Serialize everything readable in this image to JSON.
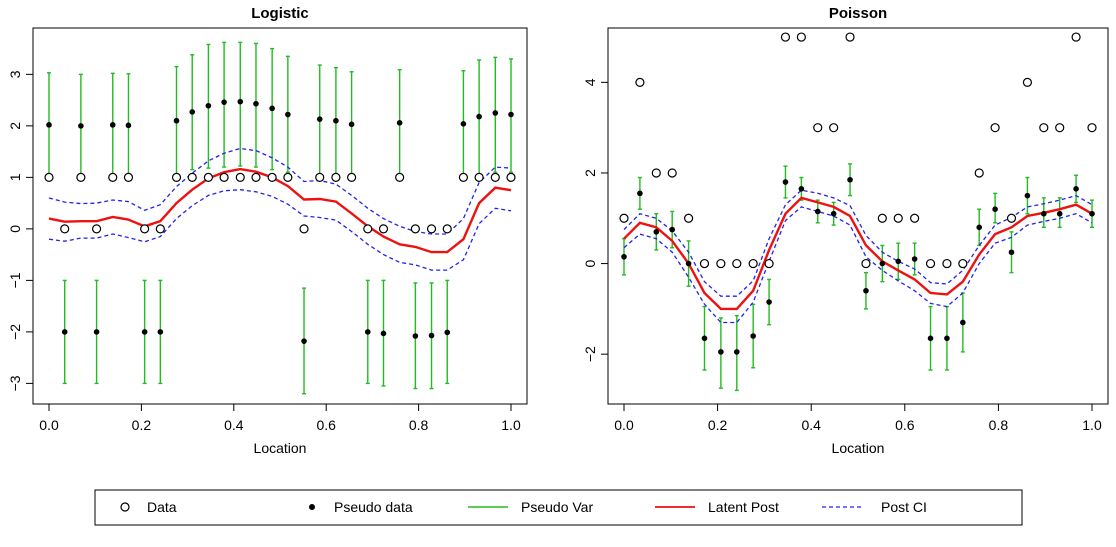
{
  "legend": {
    "items": [
      {
        "label": "Data",
        "kind": "open-circle"
      },
      {
        "label": "Pseudo data",
        "kind": "filled-dot"
      },
      {
        "label": "Pseudo Var",
        "kind": "green-line"
      },
      {
        "label": "Latent Post",
        "kind": "red-line"
      },
      {
        "label": "Post CI",
        "kind": "blue-dashed"
      }
    ]
  },
  "colors": {
    "data": "#000000",
    "pseudo_var": "#22bb22",
    "latent_post": "#ee1111",
    "post_ci": "#2222ee"
  },
  "chart_data": [
    {
      "type": "scatter",
      "title": "Logistic",
      "xlabel": "Location",
      "ylabel": "",
      "xlim": [
        0,
        1
      ],
      "ylim": [
        -3.4,
        3.9
      ],
      "xticks": [
        "0.0",
        "0.2",
        "0.4",
        "0.6",
        "0.8",
        "1.0"
      ],
      "yticks": [
        "-3",
        "-2",
        "-1",
        "0",
        "1",
        "2",
        "3"
      ],
      "x": [
        0.0,
        0.034,
        0.069,
        0.103,
        0.138,
        0.172,
        0.207,
        0.241,
        0.276,
        0.31,
        0.345,
        0.379,
        0.414,
        0.448,
        0.483,
        0.517,
        0.552,
        0.586,
        0.621,
        0.655,
        0.69,
        0.724,
        0.759,
        0.793,
        0.828,
        0.862,
        0.897,
        0.931,
        0.966,
        1.0
      ],
      "data": [
        1,
        0,
        1,
        0,
        1,
        1,
        0,
        0,
        1,
        1,
        1,
        1,
        1,
        1,
        1,
        1,
        0,
        1,
        1,
        1,
        0,
        0,
        1,
        0,
        0,
        0,
        1,
        1,
        1,
        1
      ],
      "pseudo_data": [
        2.02,
        -2.0,
        2.0,
        -2.0,
        2.02,
        2.01,
        -2.0,
        -2.0,
        2.1,
        2.27,
        2.39,
        2.46,
        2.47,
        2.43,
        2.34,
        2.22,
        -2.18,
        2.13,
        2.1,
        2.03,
        -2.0,
        -2.03,
        2.06,
        -2.08,
        -2.07,
        -2.01,
        2.04,
        2.18,
        2.25,
        2.22
      ],
      "pseudo_var_lower": [
        1.0,
        -3.0,
        1.0,
        -3.0,
        1.0,
        1.0,
        -3.0,
        -3.0,
        1.05,
        1.15,
        1.18,
        1.2,
        1.22,
        1.2,
        1.15,
        1.1,
        -3.2,
        1.05,
        1.05,
        1.0,
        -3.0,
        -3.05,
        1.02,
        -3.1,
        -3.1,
        -3.0,
        1.0,
        1.05,
        1.1,
        1.1
      ],
      "pseudo_var_upper": [
        3.03,
        -1.0,
        3.0,
        -1.0,
        3.02,
        3.01,
        -1.0,
        -1.0,
        3.15,
        3.38,
        3.58,
        3.62,
        3.62,
        3.6,
        3.5,
        3.35,
        -1.15,
        3.18,
        3.13,
        3.05,
        -1.0,
        -1.0,
        3.09,
        -1.05,
        -1.05,
        -1.0,
        3.07,
        3.28,
        3.33,
        3.3
      ],
      "latent_post": [
        0.2,
        0.14,
        0.15,
        0.15,
        0.23,
        0.18,
        0.05,
        0.15,
        0.5,
        0.76,
        0.98,
        1.1,
        1.16,
        1.11,
        1.0,
        0.83,
        0.57,
        0.58,
        0.53,
        0.3,
        0.05,
        -0.15,
        -0.3,
        -0.35,
        -0.45,
        -0.45,
        -0.2,
        0.5,
        0.8,
        0.75
      ],
      "post_ci_lower": [
        -0.2,
        -0.24,
        -0.18,
        -0.18,
        -0.1,
        -0.17,
        -0.25,
        -0.15,
        0.2,
        0.45,
        0.65,
        0.74,
        0.76,
        0.72,
        0.63,
        0.48,
        0.25,
        0.22,
        0.17,
        -0.05,
        -0.3,
        -0.5,
        -0.65,
        -0.7,
        -0.8,
        -0.8,
        -0.6,
        0.1,
        0.4,
        0.35
      ],
      "post_ci_upper": [
        0.6,
        0.52,
        0.49,
        0.5,
        0.56,
        0.53,
        0.36,
        0.47,
        0.82,
        1.08,
        1.32,
        1.47,
        1.56,
        1.52,
        1.38,
        1.2,
        0.92,
        0.94,
        0.87,
        0.65,
        0.4,
        0.2,
        0.05,
        -0.05,
        -0.1,
        -0.1,
        0.2,
        0.9,
        1.2,
        1.18
      ]
    },
    {
      "type": "scatter",
      "title": "Poisson",
      "xlabel": "Location",
      "ylabel": "",
      "xlim": [
        0,
        1
      ],
      "ylim": [
        -3.1,
        5.2
      ],
      "xticks": [
        "0.0",
        "0.2",
        "0.4",
        "0.6",
        "0.8",
        "1.0"
      ],
      "yticks": [
        "-2",
        "0",
        "2",
        "4"
      ],
      "x": [
        0.0,
        0.034,
        0.069,
        0.103,
        0.138,
        0.172,
        0.207,
        0.241,
        0.276,
        0.31,
        0.345,
        0.379,
        0.414,
        0.448,
        0.483,
        0.517,
        0.552,
        0.586,
        0.621,
        0.655,
        0.69,
        0.724,
        0.759,
        0.793,
        0.828,
        0.862,
        0.897,
        0.931,
        0.966,
        1.0
      ],
      "data": [
        1,
        4,
        2,
        2,
        1,
        0,
        0,
        0,
        0,
        0,
        5,
        5,
        3,
        3,
        5,
        0,
        1,
        1,
        1,
        0,
        0,
        0,
        2,
        3,
        1,
        4,
        3,
        3,
        5,
        3
      ],
      "pseudo_data": [
        0.15,
        1.55,
        0.7,
        0.75,
        0.0,
        -1.65,
        -1.95,
        -1.95,
        -1.6,
        -0.85,
        1.8,
        1.65,
        1.15,
        1.1,
        1.85,
        -0.6,
        0.0,
        0.05,
        0.1,
        -1.65,
        -1.65,
        -1.3,
        0.8,
        1.2,
        0.25,
        1.5,
        1.1,
        1.1,
        1.65,
        1.1
      ],
      "pseudo_var_lower": [
        -0.25,
        1.2,
        0.3,
        0.35,
        -0.5,
        -2.35,
        -2.75,
        -2.8,
        -2.3,
        -1.35,
        1.45,
        1.4,
        0.9,
        0.85,
        1.5,
        -1.0,
        -0.4,
        -0.35,
        -0.25,
        -2.35,
        -2.35,
        -1.95,
        0.4,
        0.9,
        -0.2,
        1.1,
        0.8,
        0.8,
        1.35,
        0.8
      ],
      "pseudo_var_upper": [
        0.55,
        1.9,
        1.1,
        1.15,
        0.5,
        -0.95,
        -1.2,
        -1.15,
        -0.9,
        -0.35,
        2.15,
        1.9,
        1.4,
        1.35,
        2.2,
        -0.2,
        0.4,
        0.45,
        0.45,
        -0.95,
        -0.95,
        -0.65,
        1.2,
        1.55,
        0.7,
        1.9,
        1.45,
        1.45,
        1.95,
        1.4
      ],
      "latent_post": [
        0.55,
        0.9,
        0.8,
        0.5,
        0.0,
        -0.65,
        -1.0,
        -1.0,
        -0.6,
        0.3,
        1.1,
        1.45,
        1.35,
        1.25,
        1.05,
        0.4,
        0.05,
        -0.15,
        -0.35,
        -0.65,
        -0.68,
        -0.4,
        0.2,
        0.65,
        0.8,
        1.05,
        1.12,
        1.2,
        1.3,
        1.1
      ],
      "post_ci_lower": [
        0.35,
        0.65,
        0.55,
        0.25,
        -0.3,
        -0.9,
        -1.3,
        -1.3,
        -0.85,
        0.05,
        0.95,
        1.25,
        1.15,
        1.05,
        0.85,
        0.15,
        -0.15,
        -0.38,
        -0.6,
        -0.88,
        -0.95,
        -0.65,
        0.0,
        0.45,
        0.58,
        0.85,
        0.93,
        1.0,
        1.1,
        0.9
      ],
      "post_ci_upper": [
        0.75,
        1.1,
        1.0,
        0.72,
        0.25,
        -0.4,
        -0.72,
        -0.72,
        -0.38,
        0.55,
        1.3,
        1.62,
        1.55,
        1.45,
        1.28,
        0.62,
        0.25,
        0.05,
        -0.12,
        -0.42,
        -0.45,
        -0.15,
        0.4,
        0.85,
        1.02,
        1.25,
        1.32,
        1.4,
        1.5,
        1.3
      ]
    }
  ]
}
